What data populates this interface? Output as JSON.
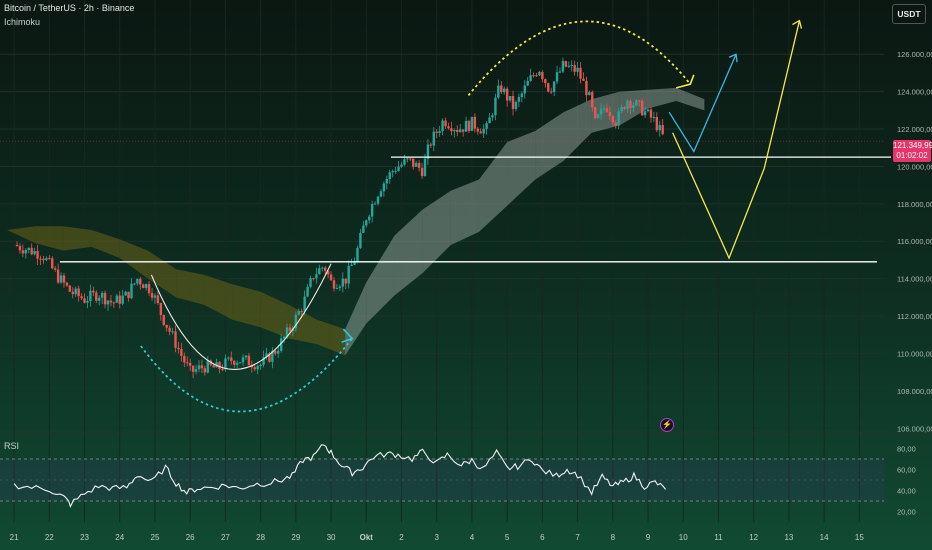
{
  "header": {
    "title": "Bitcoin / TetherUS · 2h · Binance",
    "indicator": "Ichimoku",
    "currency_button": "USDT",
    "last_price": "121.349,99",
    "countdown": "01:02:02"
  },
  "rsi_panel": {
    "label": "RSI"
  },
  "colors": {
    "up_candle": "#26a69a",
    "down_candle": "#ef5350",
    "support_line": "#ffffff",
    "projection_yellow": "#f6e84a",
    "projection_blue": "#3ab7e0",
    "cloud_bull": "#a7b3ad",
    "cloud_bear": "#6b6218",
    "price_tag": "#e8336b"
  },
  "chart_data": {
    "type": "candlestick",
    "x_ticks": [
      "21",
      "22",
      "23",
      "24",
      "25",
      "26",
      "27",
      "28",
      "29",
      "30",
      "Okt",
      "2",
      "3",
      "4",
      "5",
      "6",
      "7",
      "8",
      "9",
      "10",
      "11",
      "12",
      "13",
      "14",
      "15"
    ],
    "y_ticks": [
      "126.000,00",
      "124.000,00",
      "122.000,00",
      "120.000,00",
      "118.000,00",
      "116.000,00",
      "114.000,00",
      "112.000,00",
      "110.000,00",
      "108.000,00",
      "106.000,00"
    ],
    "y_tick_values": [
      126000,
      124000,
      122000,
      120000,
      118000,
      116000,
      114000,
      112000,
      110000,
      108000,
      106000
    ],
    "ylim": [
      105800,
      128900
    ],
    "xlim": [
      20.6,
      15.7
    ],
    "price_path": [
      [
        21.0,
        115800
      ],
      [
        21.8,
        115300
      ],
      [
        22.2,
        114200
      ],
      [
        22.6,
        113300
      ],
      [
        23.0,
        112900
      ],
      [
        23.4,
        113200
      ],
      [
        23.8,
        112700
      ],
      [
        24.2,
        113100
      ],
      [
        24.5,
        114000
      ],
      [
        24.9,
        113400
      ],
      [
        25.2,
        112000
      ],
      [
        25.5,
        110900
      ],
      [
        25.8,
        109700
      ],
      [
        26.0,
        109000
      ],
      [
        26.4,
        109300
      ],
      [
        26.8,
        109200
      ],
      [
        27.2,
        109700
      ],
      [
        27.6,
        109600
      ],
      [
        28.0,
        109400
      ],
      [
        28.4,
        110100
      ],
      [
        28.8,
        111200
      ],
      [
        29.2,
        112600
      ],
      [
        29.5,
        114200
      ],
      [
        29.8,
        114700
      ],
      [
        30.0,
        113800
      ],
      [
        30.4,
        113900
      ],
      [
        30.7,
        115200
      ],
      [
        31.0,
        117300
      ],
      [
        31.4,
        118900
      ],
      [
        31.8,
        119900
      ],
      [
        32.2,
        120300
      ],
      [
        32.6,
        119800
      ],
      [
        32.8,
        121200
      ],
      [
        33.2,
        122500
      ],
      [
        33.6,
        122000
      ],
      [
        34.0,
        122300
      ],
      [
        34.4,
        121900
      ],
      [
        34.8,
        124300
      ],
      [
        35.2,
        123100
      ],
      [
        35.6,
        124500
      ],
      [
        35.9,
        125300
      ],
      [
        36.2,
        124100
      ],
      [
        36.6,
        125400
      ],
      [
        37.0,
        125100
      ],
      [
        37.3,
        123900
      ],
      [
        37.5,
        122300
      ],
      [
        37.8,
        123300
      ],
      [
        38.1,
        122400
      ],
      [
        38.4,
        123600
      ],
      [
        38.8,
        123100
      ],
      [
        39.2,
        122400
      ],
      [
        39.5,
        121300
      ]
    ],
    "ichimoku_cloud": [
      [
        20.8,
        116600,
        116600
      ],
      [
        21.6,
        116800,
        115900
      ],
      [
        22.4,
        116800,
        115500
      ],
      [
        23.2,
        116600,
        115700
      ],
      [
        24.0,
        116100,
        115100
      ],
      [
        24.8,
        115500,
        114000
      ],
      [
        25.6,
        114500,
        113000
      ],
      [
        26.4,
        114200,
        112600
      ],
      [
        27.2,
        113700,
        111800
      ],
      [
        28.0,
        113300,
        111400
      ],
      [
        28.8,
        112600,
        110800
      ],
      [
        29.6,
        111800,
        110500
      ],
      [
        30.4,
        111300,
        109900
      ],
      [
        31.0,
        113800,
        111600
      ],
      [
        31.8,
        116300,
        113100
      ],
      [
        32.6,
        117700,
        114300
      ],
      [
        33.4,
        118700,
        115800
      ],
      [
        34.2,
        119300,
        116500
      ],
      [
        35.0,
        121300,
        117900
      ],
      [
        35.8,
        121900,
        119300
      ],
      [
        36.6,
        122900,
        120300
      ],
      [
        37.4,
        123600,
        121800
      ],
      [
        38.2,
        124000,
        122200
      ],
      [
        39.0,
        124100,
        123100
      ],
      [
        39.8,
        124200,
        123500
      ],
      [
        40.6,
        123600,
        123000
      ]
    ],
    "support_levels": [
      120500,
      114900
    ],
    "projection_yellow": [
      [
        39.7,
        121800
      ],
      [
        41.3,
        115100
      ],
      [
        42.3,
        119900
      ],
      [
        43.3,
        127800
      ]
    ],
    "projection_blue": [
      [
        39.6,
        122900
      ],
      [
        40.3,
        120800
      ],
      [
        41.5,
        126000
      ]
    ],
    "rsi": {
      "ylim": [
        10,
        90
      ],
      "y_ticks": [
        "80,00",
        "60,00",
        "40,00",
        "20,00"
      ],
      "y_tick_values": [
        80,
        60,
        40,
        20
      ],
      "bands": [
        70,
        30
      ],
      "values": [
        [
          21.0,
          45
        ],
        [
          21.5,
          43
        ],
        [
          22.0,
          41
        ],
        [
          22.4,
          34
        ],
        [
          22.6,
          27
        ],
        [
          23.0,
          37
        ],
        [
          23.4,
          44
        ],
        [
          23.8,
          42
        ],
        [
          24.2,
          43
        ],
        [
          24.5,
          55
        ],
        [
          24.9,
          48
        ],
        [
          25.3,
          62
        ],
        [
          25.6,
          47
        ],
        [
          25.9,
          38
        ],
        [
          26.2,
          42
        ],
        [
          26.6,
          43
        ],
        [
          27.0,
          45
        ],
        [
          27.4,
          42
        ],
        [
          27.8,
          46
        ],
        [
          28.2,
          47
        ],
        [
          28.6,
          50
        ],
        [
          28.9,
          54
        ],
        [
          29.2,
          69
        ],
        [
          29.5,
          72
        ],
        [
          29.8,
          84
        ],
        [
          30.0,
          76
        ],
        [
          30.3,
          64
        ],
        [
          30.6,
          57
        ],
        [
          30.9,
          62
        ],
        [
          31.2,
          72
        ],
        [
          31.6,
          75
        ],
        [
          31.9,
          74
        ],
        [
          32.3,
          70
        ],
        [
          32.6,
          77
        ],
        [
          33.0,
          66
        ],
        [
          33.3,
          74
        ],
        [
          33.7,
          64
        ],
        [
          34.0,
          69
        ],
        [
          34.3,
          60
        ],
        [
          34.7,
          76
        ],
        [
          35.0,
          61
        ],
        [
          35.3,
          63
        ],
        [
          35.7,
          70
        ],
        [
          36.0,
          59
        ],
        [
          36.4,
          54
        ],
        [
          36.7,
          60
        ],
        [
          37.0,
          55
        ],
        [
          37.4,
          38
        ],
        [
          37.7,
          53
        ],
        [
          38.0,
          44
        ],
        [
          38.3,
          48
        ],
        [
          38.6,
          54
        ],
        [
          38.9,
          44
        ],
        [
          39.2,
          48
        ],
        [
          39.5,
          41
        ]
      ]
    }
  }
}
